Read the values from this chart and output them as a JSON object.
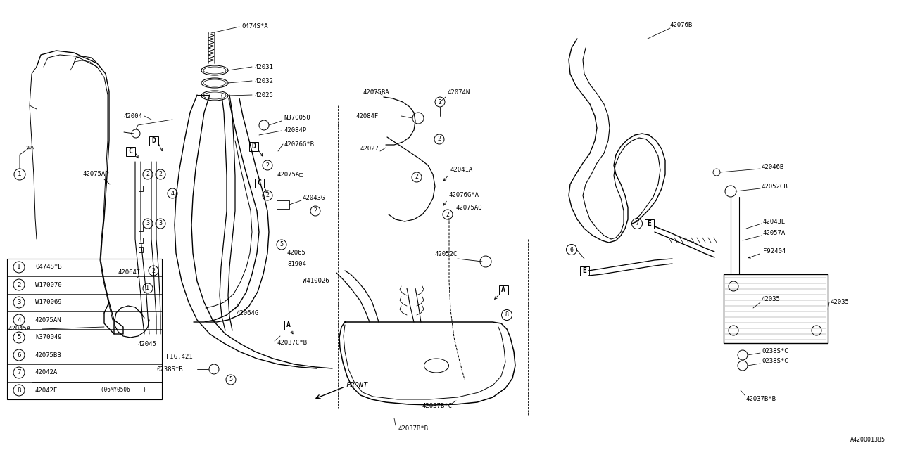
{
  "bg_color": "#ffffff",
  "legend_items": [
    [
      "1",
      "0474S*B"
    ],
    [
      "2",
      "W170070"
    ],
    [
      "3",
      "W170069"
    ],
    [
      "4",
      "42075AN"
    ],
    [
      "5",
      "N370049"
    ],
    [
      "6",
      "42075BB"
    ],
    [
      "7",
      "42042A"
    ],
    [
      "8",
      "42042F",
      "(06MY0506-   )"
    ]
  ],
  "fig_ref": "A420001385",
  "font": "monospace"
}
